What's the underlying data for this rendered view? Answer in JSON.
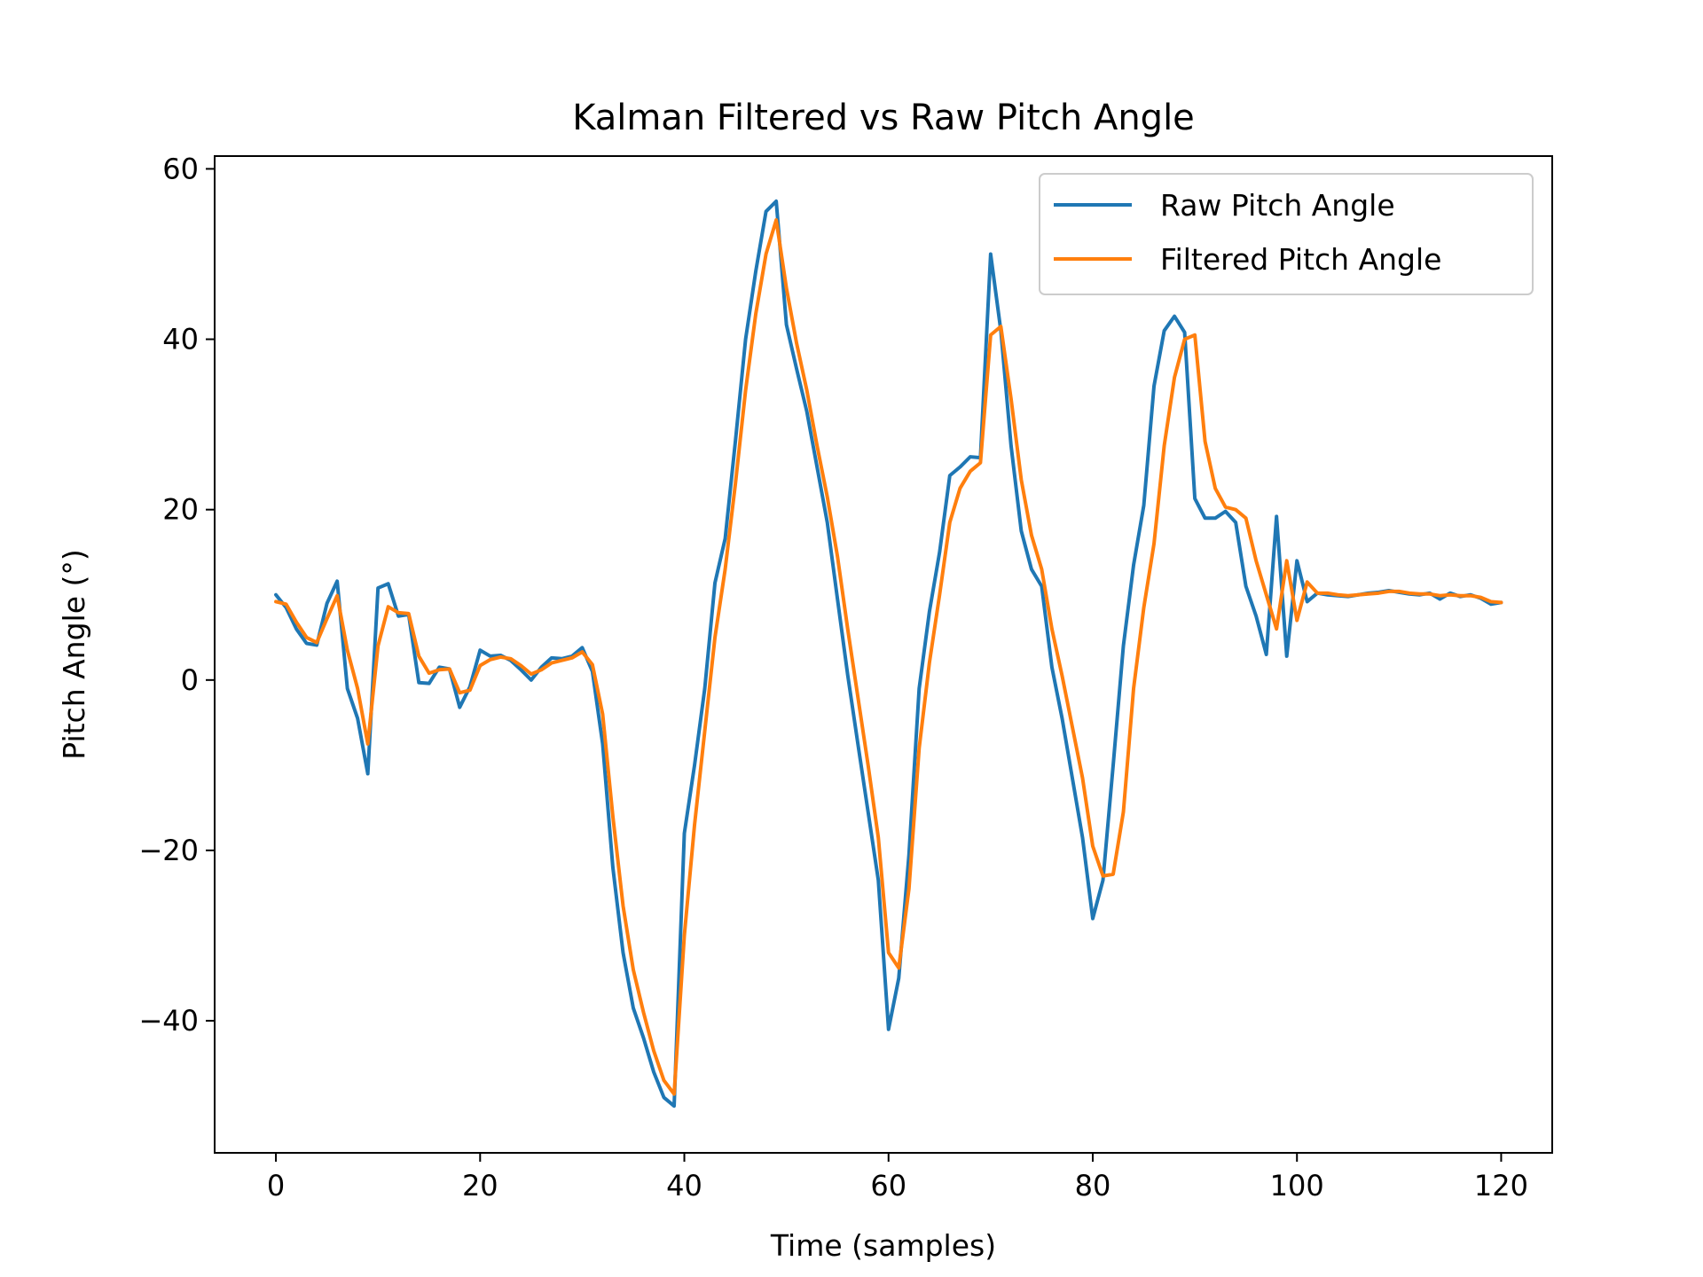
{
  "chart_data": {
    "type": "line",
    "title": "Kalman Filtered vs Raw Pitch Angle",
    "xlabel": "Time (samples)",
    "ylabel": "Pitch Angle (°)",
    "xlim": [
      -6,
      125
    ],
    "ylim": [
      -55.5,
      61.5
    ],
    "xticks": [
      0,
      20,
      40,
      60,
      80,
      100,
      120
    ],
    "xtick_labels": [
      "0",
      "20",
      "40",
      "60",
      "80",
      "100",
      "120"
    ],
    "yticks": [
      60,
      40,
      20,
      0,
      -20,
      -40
    ],
    "ytick_labels": [
      "60",
      "40",
      "20",
      "0",
      "−20",
      "−40"
    ],
    "legend_position": "top-right",
    "grid": false,
    "series": [
      {
        "name": "Raw Pitch Angle",
        "color": "#1f77b4",
        "values": [
          10,
          8.5,
          6,
          4.3,
          4.1,
          9,
          11.6,
          -1,
          -4.5,
          -11,
          10.8,
          11.3,
          7.5,
          7.7,
          -0.3,
          -0.4,
          1.5,
          1.3,
          -3.2,
          -0.8,
          3.5,
          2.8,
          2.9,
          2.3,
          1.2,
          0,
          1.5,
          2.6,
          2.5,
          2.8,
          3.8,
          1,
          -7.5,
          -22,
          -32,
          -38.5,
          -42,
          -46,
          -49,
          -50,
          -18,
          -10,
          -1,
          11.4,
          16.6,
          28,
          40,
          48,
          55,
          56.2,
          41.7,
          36.5,
          31.5,
          25,
          18.5,
          9.5,
          0.6,
          -7.5,
          -15.5,
          -23.5,
          -41,
          -35,
          -20.5,
          -1,
          8,
          15,
          24,
          25,
          26.2,
          26.1,
          50,
          41,
          27.5,
          17.5,
          13,
          11,
          1.5,
          -4.5,
          -11.5,
          -18.5,
          -28,
          -23.5,
          -10,
          4,
          13.5,
          20.5,
          34.5,
          41,
          42.7,
          40.8,
          21.3,
          19,
          19,
          19.8,
          18.5,
          11,
          7.5,
          3,
          19.2,
          2.8,
          14,
          9.2,
          10.2,
          10,
          9.9,
          9.8,
          10,
          10.2,
          10.3,
          10.5,
          10.3,
          10.1,
          10,
          10.2,
          9.5,
          10.2,
          9.8,
          10,
          9.6,
          8.9,
          9.1
        ]
      },
      {
        "name": "Filtered Pitch Angle",
        "color": "#ff7f0e",
        "values": [
          9.2,
          8.9,
          6.8,
          5,
          4.4,
          7.2,
          9.9,
          3.5,
          -1,
          -7.5,
          4,
          8.6,
          7.9,
          7.8,
          2.8,
          0.8,
          1.2,
          1.3,
          -1.5,
          -1.2,
          1.7,
          2.4,
          2.7,
          2.5,
          1.7,
          0.7,
          1.2,
          2,
          2.3,
          2.6,
          3.3,
          1.8,
          -4,
          -16,
          -26.5,
          -34,
          -39,
          -43.5,
          -47,
          -48.6,
          -30,
          -17,
          -6,
          5,
          13,
          23,
          34,
          43,
          50,
          54,
          46,
          39.5,
          34,
          27.5,
          21.5,
          14.5,
          6,
          -2,
          -10,
          -18.5,
          -32,
          -33.8,
          -24.5,
          -8,
          2,
          10,
          18.5,
          22.5,
          24.5,
          25.5,
          40.5,
          41.5,
          33,
          23.5,
          17,
          13,
          6,
          0.5,
          -5.5,
          -11.5,
          -19.5,
          -23,
          -22.8,
          -15.5,
          -1,
          8.5,
          16,
          27.5,
          35.5,
          40,
          40.5,
          28,
          22.5,
          20.3,
          20,
          19,
          14,
          10,
          6,
          14,
          7,
          11.5,
          10.2,
          10.2,
          10,
          9.9,
          10,
          10.1,
          10.2,
          10.4,
          10.4,
          10.2,
          10.1,
          10.1,
          9.9,
          10,
          9.9,
          9.9,
          9.7,
          9.2,
          9.1
        ]
      }
    ]
  }
}
